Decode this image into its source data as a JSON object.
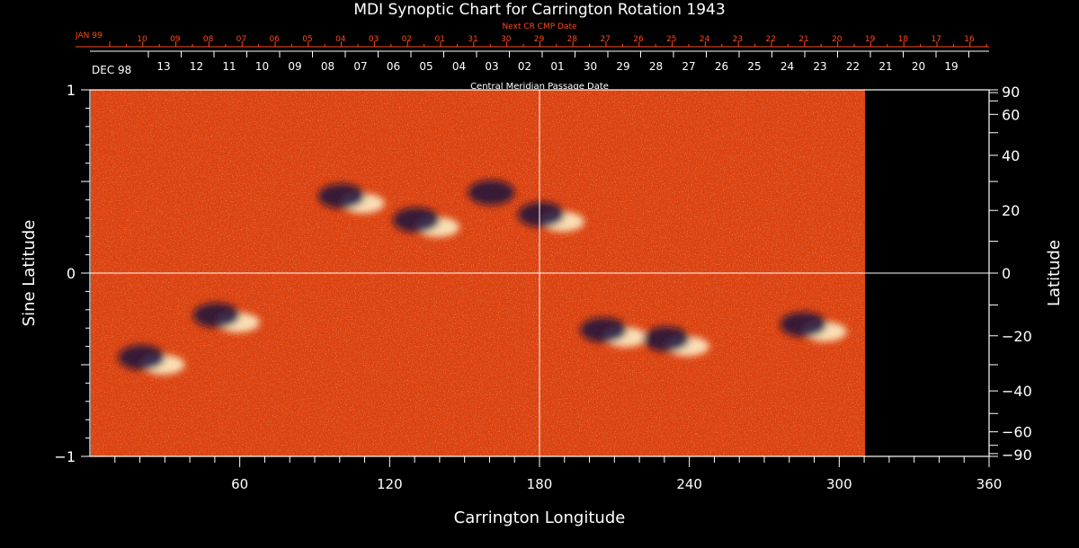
{
  "chart_data": {
    "type": "heatmap",
    "title": "MDI Synoptic Chart for Carrington Rotation 1943",
    "xlabel": "Carrington Longitude",
    "ylabel_left": "Sine Latitude",
    "ylabel_right": "Latitude",
    "xlim": [
      0,
      360
    ],
    "ylim": [
      -1,
      1
    ],
    "data_extent_longitude": [
      0,
      310
    ],
    "x_ticks": [
      "60",
      "120",
      "180",
      "240",
      "300",
      "360"
    ],
    "y_ticks_left": [
      "1",
      "0",
      "−1"
    ],
    "y_ticks_right": [
      "90",
      "60",
      "40",
      "20",
      "0",
      "−20",
      "−40",
      "−60",
      "−90"
    ],
    "top_axis": {
      "label": "Next CR CMP Date",
      "color": "#ff4a1a",
      "start_label": "JAN 99",
      "dates": [
        "10",
        "09",
        "08",
        "07",
        "06",
        "05",
        "04",
        "03",
        "02",
        "01",
        "31",
        "30",
        "29",
        "28",
        "27",
        "26",
        "25",
        "24",
        "23",
        "22",
        "21",
        "20",
        "19",
        "18",
        "17",
        "16"
      ]
    },
    "cmp_axis": {
      "label": "Central Meridian Passage Date",
      "start_label": "DEC 98",
      "dates": [
        "13",
        "12",
        "11",
        "10",
        "09",
        "08",
        "07",
        "06",
        "05",
        "04",
        "03",
        "02",
        "01",
        "30",
        "29",
        "28",
        "27",
        "26",
        "25",
        "24",
        "23",
        "22",
        "21",
        "20",
        "19"
      ]
    },
    "colormap": {
      "negative": "#0a0a40",
      "background": "#f04a10",
      "positive": "#fff8d0"
    },
    "reference_lines": {
      "vertical_longitude": 180,
      "horizontal_sinlat": 0
    },
    "active_regions": [
      {
        "lon": 105,
        "sinlat": 0.4,
        "polarity": "mixed"
      },
      {
        "lon": 135,
        "sinlat": 0.27,
        "polarity": "mixed"
      },
      {
        "lon": 165,
        "sinlat": 0.42,
        "polarity": "negative"
      },
      {
        "lon": 185,
        "sinlat": 0.3,
        "polarity": "mixed"
      },
      {
        "lon": 25,
        "sinlat": -0.48,
        "polarity": "mixed"
      },
      {
        "lon": 55,
        "sinlat": -0.25,
        "polarity": "mixed"
      },
      {
        "lon": 210,
        "sinlat": -0.33,
        "polarity": "mixed"
      },
      {
        "lon": 235,
        "sinlat": -0.38,
        "polarity": "mixed"
      },
      {
        "lon": 290,
        "sinlat": -0.3,
        "polarity": "mixed"
      }
    ]
  }
}
